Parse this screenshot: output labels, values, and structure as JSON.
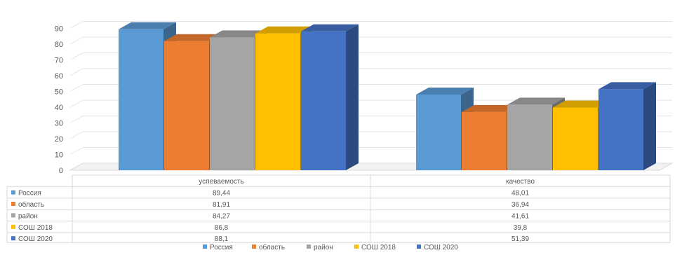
{
  "chart_data": {
    "type": "bar",
    "categories": [
      "успеваемость",
      "качество"
    ],
    "series": [
      {
        "name": "Россия",
        "values": [
          89.44,
          48.01
        ],
        "labels": [
          "89,44",
          "48,01"
        ],
        "color": "#5B9BD5"
      },
      {
        "name": "область",
        "values": [
          81.91,
          36.94
        ],
        "labels": [
          "81,91",
          "36,94"
        ],
        "color": "#ED7D31"
      },
      {
        "name": "район",
        "values": [
          84.27,
          41.61
        ],
        "labels": [
          "84,27",
          "41,61"
        ],
        "color": "#A5A5A5"
      },
      {
        "name": "СОШ 2018",
        "values": [
          86.8,
          39.8
        ],
        "labels": [
          "86,8",
          "39,8"
        ],
        "color": "#FFC000"
      },
      {
        "name": "СОШ 2020",
        "values": [
          88.1,
          51.39
        ],
        "labels": [
          "88,1",
          "51,39"
        ],
        "color": "#4472C4"
      }
    ],
    "yticks": [
      "0",
      "10",
      "20",
      "30",
      "40",
      "50",
      "60",
      "70",
      "80",
      "90"
    ],
    "ylim": [
      0,
      100
    ],
    "style": "3d-clustered-column",
    "data_table": true,
    "grid": true,
    "legend": "bottom"
  }
}
